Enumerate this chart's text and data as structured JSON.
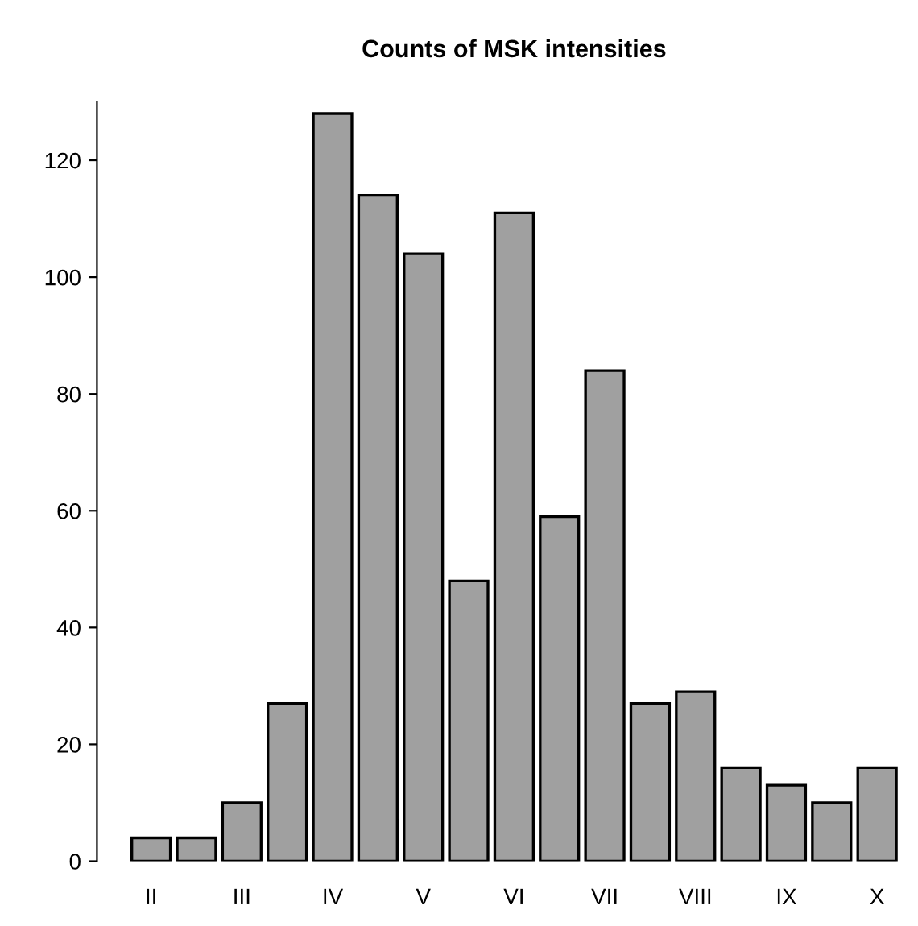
{
  "chart_data": {
    "type": "bar",
    "title": "Counts of MSK intensities",
    "categories": [
      "II",
      null,
      "III",
      null,
      "IV",
      null,
      "V",
      null,
      "VI",
      null,
      "VII",
      null,
      "VIII",
      null,
      "IX",
      null,
      "X"
    ],
    "values": [
      4,
      4,
      10,
      27,
      128,
      114,
      104,
      48,
      111,
      59,
      84,
      27,
      29,
      16,
      13,
      10,
      16
    ],
    "color": "#a0a0a0",
    "ylim": [
      0,
      130
    ],
    "yticks": [
      0,
      20,
      40,
      60,
      80,
      100,
      120
    ],
    "grid": false
  }
}
